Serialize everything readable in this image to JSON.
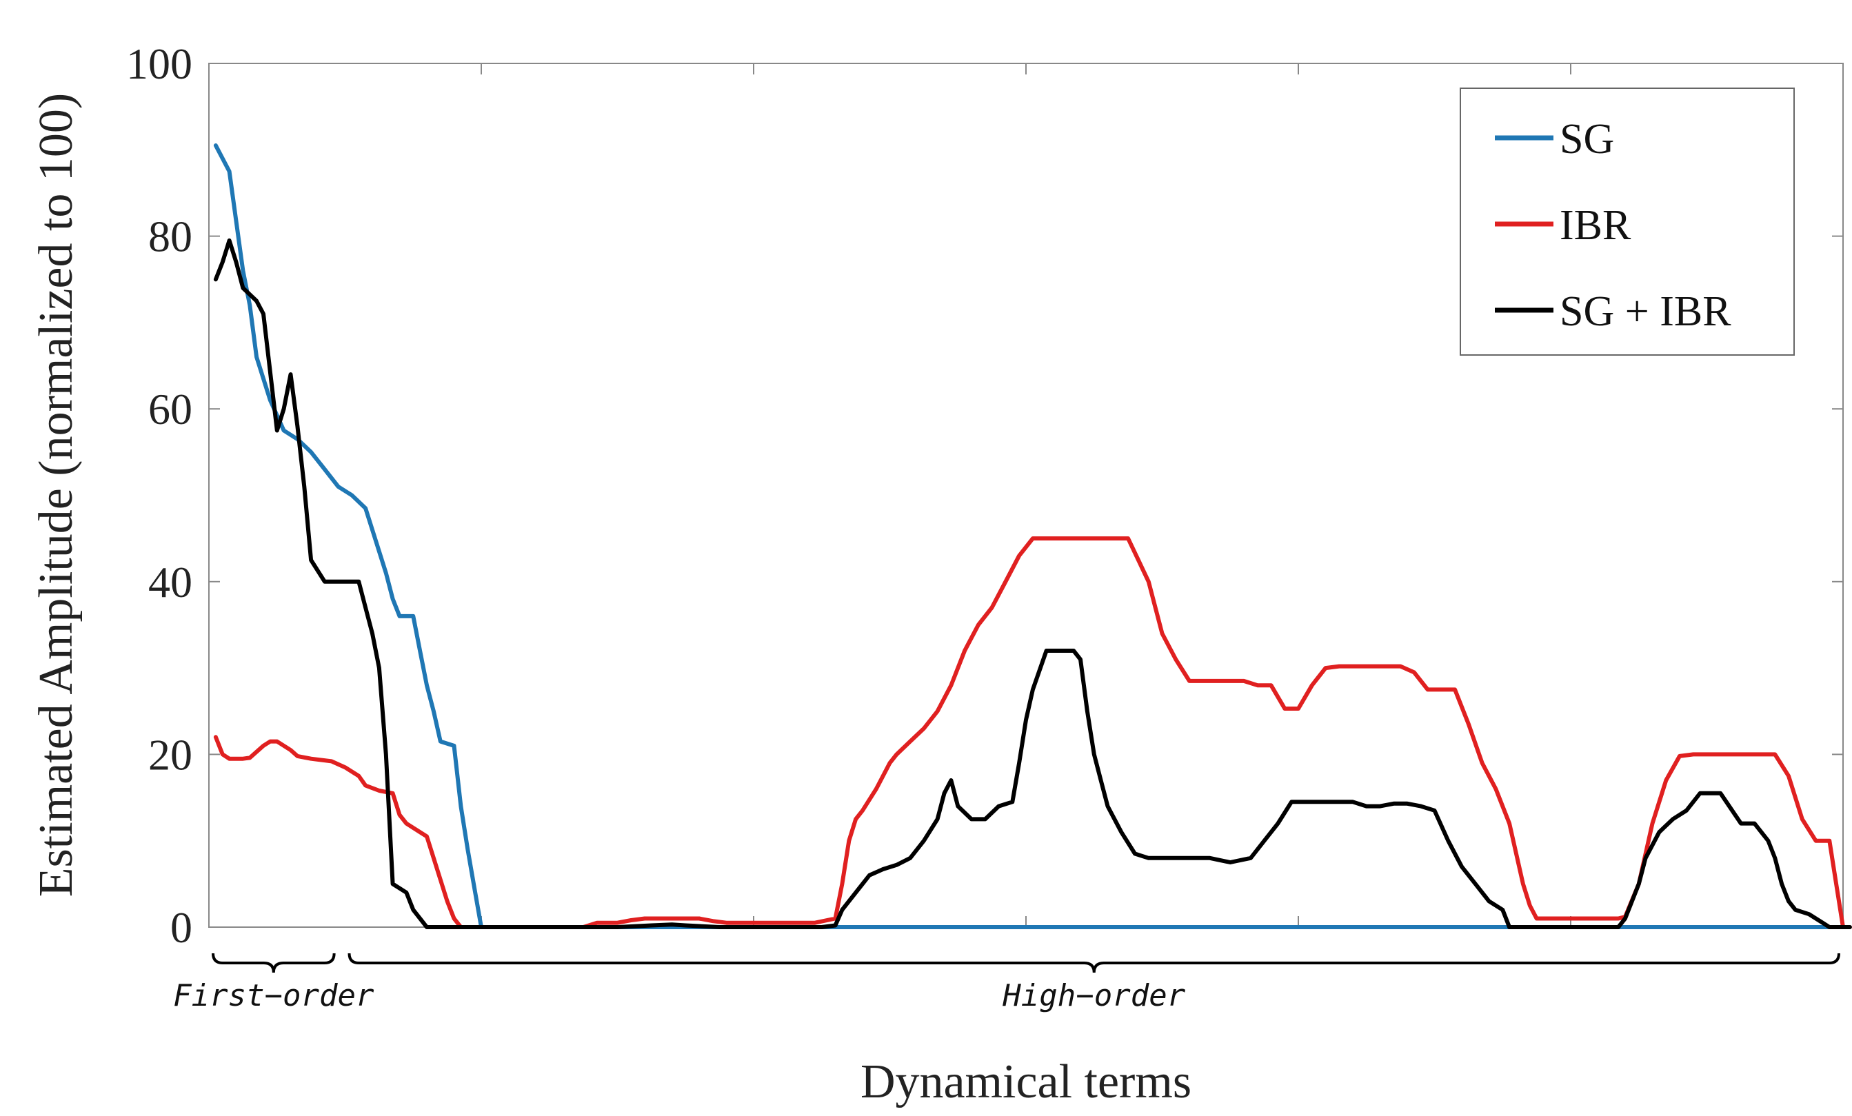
{
  "chart_data": {
    "type": "line",
    "title": "",
    "xlabel": "Dynamical terms",
    "ylabel": "Estimated Amplitude (normalized to 100)",
    "xlim": [
      0,
      240
    ],
    "ylim": [
      0,
      100
    ],
    "yticks": [
      0,
      20,
      40,
      60,
      80,
      100
    ],
    "yticklabels": [
      "0",
      "20",
      "40",
      "60",
      "80",
      "100"
    ],
    "grid": false,
    "legend_position": "top-right",
    "groups": [
      {
        "label": "First−order",
        "range": [
          0,
          19
        ]
      },
      {
        "label": "High−order",
        "range": [
          20,
          240
        ]
      }
    ],
    "series": [
      {
        "name": "SG",
        "color": "#1f77b4",
        "points": [
          [
            1,
            90.5
          ],
          [
            3,
            87.5
          ],
          [
            5,
            76
          ],
          [
            6,
            72
          ],
          [
            7,
            66
          ],
          [
            9,
            61
          ],
          [
            11,
            57.5
          ],
          [
            13,
            56.5
          ],
          [
            15,
            55
          ],
          [
            17,
            53
          ],
          [
            19,
            51
          ],
          [
            21,
            50
          ],
          [
            23,
            48.5
          ],
          [
            24,
            46
          ],
          [
            26,
            41
          ],
          [
            27,
            38
          ],
          [
            28,
            36
          ],
          [
            30,
            36
          ],
          [
            31,
            32
          ],
          [
            32,
            28
          ],
          [
            33,
            25
          ],
          [
            34,
            21.5
          ],
          [
            36,
            21
          ],
          [
            37,
            14
          ],
          [
            38,
            9
          ],
          [
            39,
            4.5
          ],
          [
            40,
            0
          ],
          [
            46,
            0
          ],
          [
            240,
            0
          ]
        ]
      },
      {
        "name": "IBR",
        "color": "#e02020",
        "points": [
          [
            1,
            22
          ],
          [
            2,
            20
          ],
          [
            3,
            19.5
          ],
          [
            5,
            19.5
          ],
          [
            6,
            19.6
          ],
          [
            8,
            21
          ],
          [
            9,
            21.5
          ],
          [
            10,
            21.5
          ],
          [
            12,
            20.5
          ],
          [
            13,
            19.8
          ],
          [
            15,
            19.5
          ],
          [
            18,
            19.2
          ],
          [
            20,
            18.5
          ],
          [
            22,
            17.5
          ],
          [
            23,
            16.4
          ],
          [
            25,
            15.8
          ],
          [
            27,
            15.5
          ],
          [
            28,
            13
          ],
          [
            29,
            12
          ],
          [
            31,
            11
          ],
          [
            32,
            10.5
          ],
          [
            33,
            8
          ],
          [
            35,
            3
          ],
          [
            36,
            1
          ],
          [
            37,
            0
          ],
          [
            55,
            0
          ],
          [
            57,
            0.5
          ],
          [
            60,
            0.5
          ],
          [
            62,
            0.8
          ],
          [
            64,
            1
          ],
          [
            67,
            1
          ],
          [
            70,
            1
          ],
          [
            72,
            1
          ],
          [
            74,
            0.7
          ],
          [
            76,
            0.5
          ],
          [
            80,
            0.5
          ],
          [
            82,
            0.5
          ],
          [
            83,
            0.5
          ],
          [
            85,
            0.5
          ],
          [
            89,
            0.5
          ],
          [
            92,
            1
          ],
          [
            93,
            5
          ],
          [
            94,
            10
          ],
          [
            95,
            12.5
          ],
          [
            96,
            13.5
          ],
          [
            98,
            16
          ],
          [
            100,
            19
          ],
          [
            101,
            20
          ],
          [
            103,
            21.5
          ],
          [
            105,
            23
          ],
          [
            107,
            25
          ],
          [
            109,
            28
          ],
          [
            111,
            32
          ],
          [
            113,
            35
          ],
          [
            115,
            37
          ],
          [
            117,
            40
          ],
          [
            119,
            43
          ],
          [
            121,
            45
          ],
          [
            124,
            45
          ],
          [
            130,
            45
          ],
          [
            135,
            45
          ],
          [
            138,
            40
          ],
          [
            140,
            34
          ],
          [
            142,
            31
          ],
          [
            144,
            28.5
          ],
          [
            146,
            28.5
          ],
          [
            148,
            28.5
          ],
          [
            150,
            28.5
          ],
          [
            152,
            28.5
          ],
          [
            154,
            28
          ],
          [
            156,
            28
          ],
          [
            158,
            25.3
          ],
          [
            160,
            25.3
          ],
          [
            162,
            28
          ],
          [
            164,
            30
          ],
          [
            166,
            30.2
          ],
          [
            168,
            30.2
          ],
          [
            170,
            30.2
          ],
          [
            173,
            30.2
          ],
          [
            175,
            30.2
          ],
          [
            177,
            29.5
          ],
          [
            179,
            27.5
          ],
          [
            183,
            27.5
          ],
          [
            185,
            23.5
          ],
          [
            187,
            19
          ],
          [
            189,
            16
          ],
          [
            191,
            12
          ],
          [
            193,
            5
          ],
          [
            194,
            2.5
          ],
          [
            195,
            1
          ],
          [
            197,
            1
          ],
          [
            205,
            1
          ],
          [
            207,
            1
          ],
          [
            208,
            1.2
          ],
          [
            210,
            5
          ],
          [
            212,
            12
          ],
          [
            214,
            17
          ],
          [
            216,
            19.8
          ],
          [
            218,
            20
          ],
          [
            223,
            20
          ],
          [
            227,
            20
          ],
          [
            230,
            20
          ],
          [
            232,
            17.5
          ],
          [
            234,
            12.5
          ],
          [
            236,
            10
          ],
          [
            238,
            10
          ],
          [
            239,
            5
          ],
          [
            240,
            0
          ],
          [
            241,
            0
          ]
        ]
      },
      {
        "name": "SG + IBR",
        "color": "#000000",
        "points": [
          [
            1,
            75
          ],
          [
            2,
            77
          ],
          [
            3,
            79.5
          ],
          [
            4,
            77
          ],
          [
            5,
            74
          ],
          [
            7,
            72.5
          ],
          [
            8,
            71
          ],
          [
            10,
            57.5
          ],
          [
            11,
            60
          ],
          [
            12,
            64
          ],
          [
            13,
            58
          ],
          [
            14,
            51
          ],
          [
            15,
            42.5
          ],
          [
            17,
            40
          ],
          [
            20,
            40
          ],
          [
            22,
            40
          ],
          [
            23,
            37
          ],
          [
            24,
            34
          ],
          [
            25,
            30
          ],
          [
            26,
            20
          ],
          [
            27,
            5
          ],
          [
            29,
            4
          ],
          [
            30,
            2
          ],
          [
            32,
            0
          ],
          [
            55,
            0
          ],
          [
            60,
            0
          ],
          [
            65,
            0.2
          ],
          [
            68,
            0.3
          ],
          [
            70,
            0.2
          ],
          [
            75,
            0
          ],
          [
            78,
            0
          ],
          [
            80,
            0
          ],
          [
            88,
            0
          ],
          [
            90,
            0
          ],
          [
            92,
            0.2
          ],
          [
            93,
            2
          ],
          [
            95,
            4
          ],
          [
            97,
            6
          ],
          [
            99,
            6.7
          ],
          [
            101,
            7.2
          ],
          [
            103,
            8
          ],
          [
            105,
            10
          ],
          [
            107,
            12.5
          ],
          [
            108,
            15.5
          ],
          [
            109,
            17
          ],
          [
            110,
            14
          ],
          [
            112,
            12.5
          ],
          [
            114,
            12.5
          ],
          [
            116,
            14
          ],
          [
            118,
            14.5
          ],
          [
            119,
            19
          ],
          [
            120,
            24
          ],
          [
            121,
            27.5
          ],
          [
            123,
            32
          ],
          [
            125,
            32
          ],
          [
            127,
            32
          ],
          [
            128,
            31
          ],
          [
            129,
            25
          ],
          [
            130,
            20
          ],
          [
            131,
            17
          ],
          [
            132,
            14
          ],
          [
            134,
            11
          ],
          [
            136,
            8.5
          ],
          [
            138,
            8
          ],
          [
            142,
            8
          ],
          [
            145,
            8
          ],
          [
            147,
            8
          ],
          [
            150,
            7.5
          ],
          [
            153,
            8
          ],
          [
            155,
            10
          ],
          [
            157,
            12
          ],
          [
            159,
            14.5
          ],
          [
            163,
            14.5
          ],
          [
            168,
            14.5
          ],
          [
            170,
            14
          ],
          [
            172,
            14
          ],
          [
            174,
            14.3
          ],
          [
            176,
            14.3
          ],
          [
            178,
            14
          ],
          [
            180,
            13.5
          ],
          [
            182,
            10
          ],
          [
            184,
            7
          ],
          [
            186,
            5
          ],
          [
            188,
            3
          ],
          [
            190,
            2
          ],
          [
            191,
            0
          ],
          [
            193,
            0
          ],
          [
            200,
            0
          ],
          [
            205,
            0
          ],
          [
            207,
            0
          ],
          [
            208,
            1
          ],
          [
            210,
            5
          ],
          [
            211,
            8
          ],
          [
            213,
            11
          ],
          [
            215,
            12.5
          ],
          [
            217,
            13.5
          ],
          [
            219,
            15.5
          ],
          [
            221,
            15.5
          ],
          [
            222,
            15.5
          ],
          [
            225,
            12
          ],
          [
            227,
            12
          ],
          [
            229,
            10
          ],
          [
            230,
            8
          ],
          [
            231,
            5
          ],
          [
            232,
            3
          ],
          [
            233,
            2
          ],
          [
            235,
            1.5
          ],
          [
            237,
            0.5
          ],
          [
            238,
            0
          ],
          [
            241,
            0
          ]
        ]
      }
    ]
  }
}
